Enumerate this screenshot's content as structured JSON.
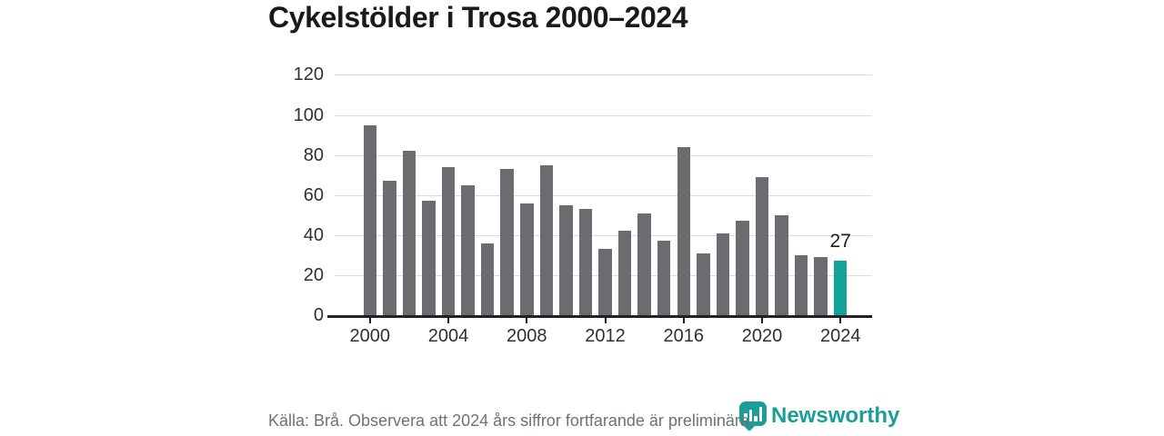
{
  "title": "Cykelstölder i Trosa 2000–2024",
  "chart_data": {
    "type": "bar",
    "title": "Cykelstölder i Trosa 2000–2024",
    "categories": [
      "2000",
      "2001",
      "2002",
      "2003",
      "2004",
      "2005",
      "2006",
      "2007",
      "2008",
      "2009",
      "2010",
      "2011",
      "2012",
      "2013",
      "2014",
      "2015",
      "2016",
      "2017",
      "2018",
      "2019",
      "2020",
      "2021",
      "2022",
      "2023",
      "2024"
    ],
    "values": [
      95,
      67,
      82,
      57,
      74,
      65,
      36,
      73,
      56,
      75,
      55,
      53,
      33,
      42,
      51,
      37,
      84,
      31,
      41,
      47,
      69,
      50,
      30,
      29,
      27
    ],
    "xlabel": "",
    "ylabel": "",
    "ylim": [
      0,
      120
    ],
    "y_ticks": [
      0,
      20,
      40,
      60,
      80,
      100,
      120
    ],
    "x_tick_labels": [
      "2000",
      "2004",
      "2008",
      "2012",
      "2016",
      "2020",
      "2024"
    ],
    "grid": "horizontal",
    "legend": "none",
    "highlight_index": 24,
    "highlight_value_label": "27",
    "bar_color": "#6b6b70",
    "highlight_color": "#11a39a"
  },
  "footer": {
    "source": "Källa: Brå. Observera att 2024 års siffror fortfarande är preliminära.",
    "logo_text": "Newsworthy",
    "logo_color": "#1b9e96"
  }
}
